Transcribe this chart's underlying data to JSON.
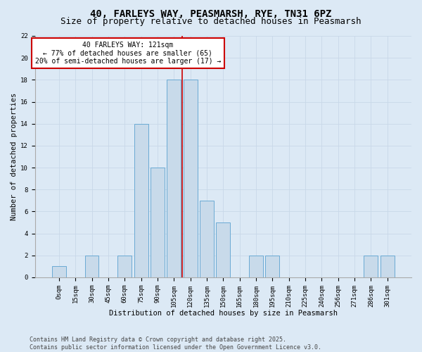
{
  "title_line1": "40, FARLEYS WAY, PEASMARSH, RYE, TN31 6PZ",
  "title_line2": "Size of property relative to detached houses in Peasmarsh",
  "xlabel": "Distribution of detached houses by size in Peasmarsh",
  "ylabel": "Number of detached properties",
  "categories": [
    "0sqm",
    "15sqm",
    "30sqm",
    "45sqm",
    "60sqm",
    "75sqm",
    "90sqm",
    "105sqm",
    "120sqm",
    "135sqm",
    "150sqm",
    "165sqm",
    "180sqm",
    "195sqm",
    "210sqm",
    "225sqm",
    "240sqm",
    "256sqm",
    "271sqm",
    "286sqm",
    "301sqm"
  ],
  "values": [
    1,
    0,
    2,
    0,
    2,
    14,
    10,
    18,
    18,
    7,
    5,
    0,
    2,
    2,
    0,
    0,
    0,
    0,
    0,
    2,
    2
  ],
  "bar_color": "#c8daea",
  "bar_edge_color": "#6aaad4",
  "annotation_text": "40 FARLEYS WAY: 121sqm\n← 77% of detached houses are smaller (65)\n20% of semi-detached houses are larger (17) →",
  "annotation_box_color": "#ffffff",
  "annotation_box_edge_color": "#cc0000",
  "annotation_text_color": "#000000",
  "marker_line_color": "#cc0000",
  "ylim": [
    0,
    22
  ],
  "yticks": [
    0,
    2,
    4,
    6,
    8,
    10,
    12,
    14,
    16,
    18,
    20,
    22
  ],
  "grid_color": "#c8d8e8",
  "background_color": "#dce9f5",
  "plot_bg_color": "#dce9f5",
  "footer_text": "Contains HM Land Registry data © Crown copyright and database right 2025.\nContains public sector information licensed under the Open Government Licence v3.0.",
  "title_fontsize": 10,
  "subtitle_fontsize": 9,
  "axis_label_fontsize": 7.5,
  "tick_fontsize": 6.5,
  "annotation_fontsize": 7,
  "footer_fontsize": 6
}
